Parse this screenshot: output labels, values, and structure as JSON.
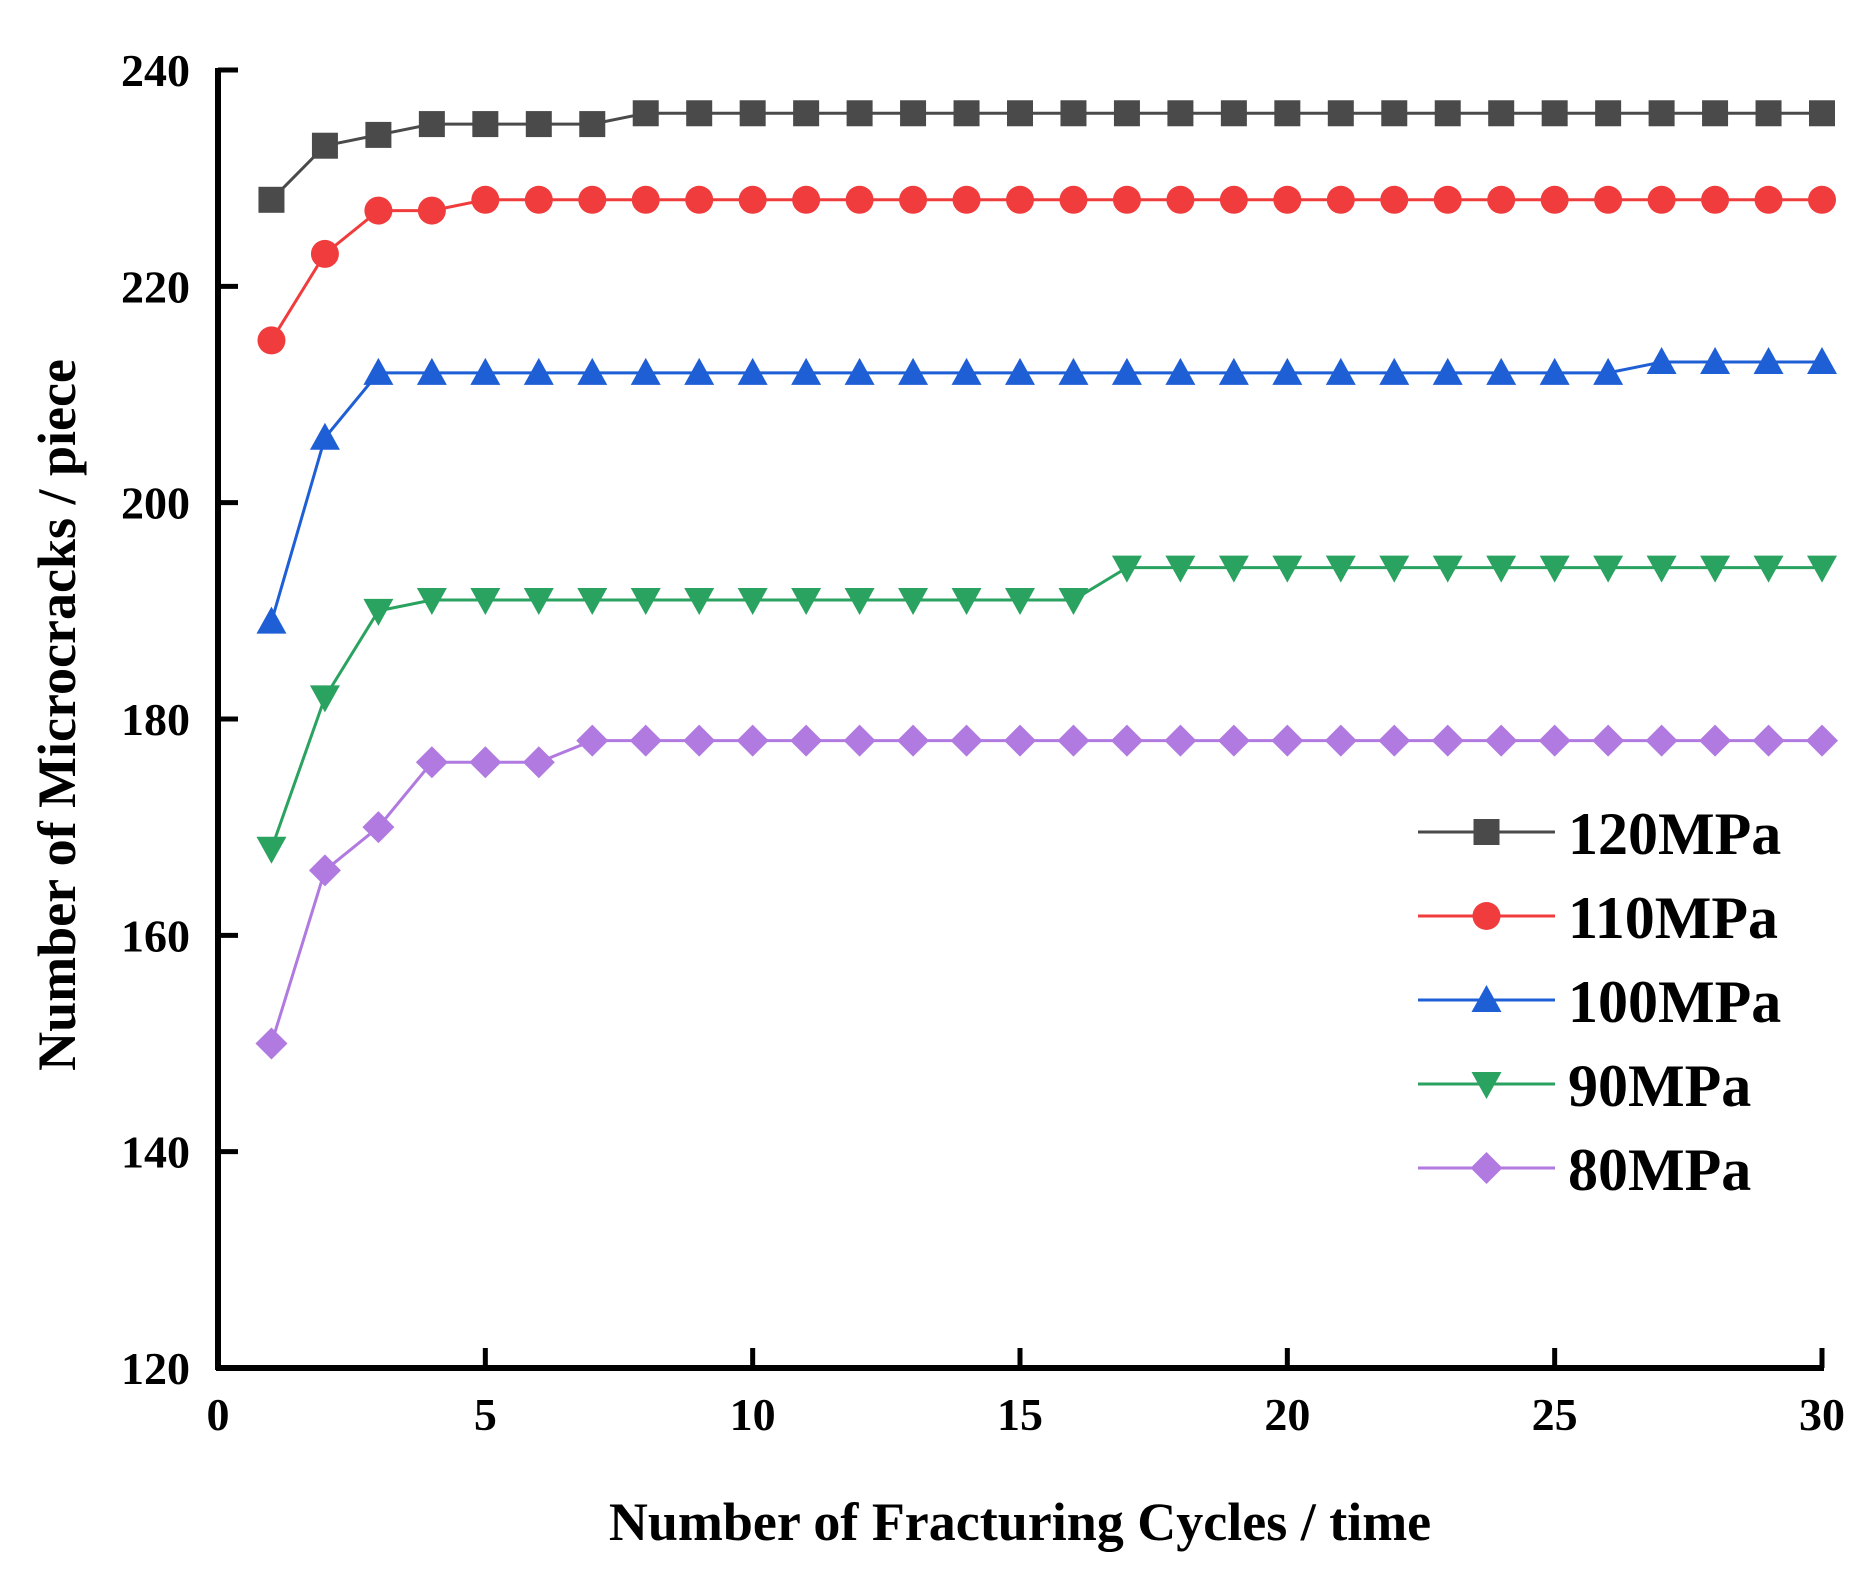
{
  "chart_data": {
    "type": "line",
    "title": "",
    "xlabel": "Number of Fracturing Cycles / time",
    "ylabel": "Number of Microcracks / piece",
    "xlim": [
      0,
      30
    ],
    "ylim": [
      120,
      240
    ],
    "xticks": [
      0,
      5,
      10,
      15,
      20,
      25,
      30
    ],
    "yticks": [
      120,
      140,
      160,
      180,
      200,
      220,
      240
    ],
    "grid": false,
    "legend_position": "right",
    "x": [
      1,
      2,
      3,
      4,
      5,
      6,
      7,
      8,
      9,
      10,
      11,
      12,
      13,
      14,
      15,
      16,
      17,
      18,
      19,
      20,
      21,
      22,
      23,
      24,
      25,
      26,
      27,
      28,
      29,
      30
    ],
    "series": [
      {
        "name": "120MPa",
        "color": "#4a4a4a",
        "marker": "square",
        "values": [
          228,
          233,
          234,
          235,
          235,
          235,
          235,
          236,
          236,
          236,
          236,
          236,
          236,
          236,
          236,
          236,
          236,
          236,
          236,
          236,
          236,
          236,
          236,
          236,
          236,
          236,
          236,
          236,
          236,
          236
        ]
      },
      {
        "name": "110MPa",
        "color": "#f03c3c",
        "marker": "circle",
        "values": [
          215,
          223,
          227,
          227,
          228,
          228,
          228,
          228,
          228,
          228,
          228,
          228,
          228,
          228,
          228,
          228,
          228,
          228,
          228,
          228,
          228,
          228,
          228,
          228,
          228,
          228,
          228,
          228,
          228,
          228
        ]
      },
      {
        "name": "100MPa",
        "color": "#1f5fd6",
        "marker": "triangle-up",
        "values": [
          189,
          206,
          212,
          212,
          212,
          212,
          212,
          212,
          212,
          212,
          212,
          212,
          212,
          212,
          212,
          212,
          212,
          212,
          212,
          212,
          212,
          212,
          212,
          212,
          212,
          212,
          213,
          213,
          213,
          213
        ]
      },
      {
        "name": "90MPa",
        "color": "#2aa260",
        "marker": "triangle-down",
        "values": [
          168,
          182,
          190,
          191,
          191,
          191,
          191,
          191,
          191,
          191,
          191,
          191,
          191,
          191,
          191,
          191,
          194,
          194,
          194,
          194,
          194,
          194,
          194,
          194,
          194,
          194,
          194,
          194,
          194,
          194
        ]
      },
      {
        "name": "80MPa",
        "color": "#b07ae0",
        "marker": "diamond",
        "values": [
          150,
          166,
          170,
          176,
          176,
          176,
          178,
          178,
          178,
          178,
          178,
          178,
          178,
          178,
          178,
          178,
          178,
          178,
          178,
          178,
          178,
          178,
          178,
          178,
          178,
          178,
          178,
          178,
          178,
          178
        ]
      }
    ]
  }
}
